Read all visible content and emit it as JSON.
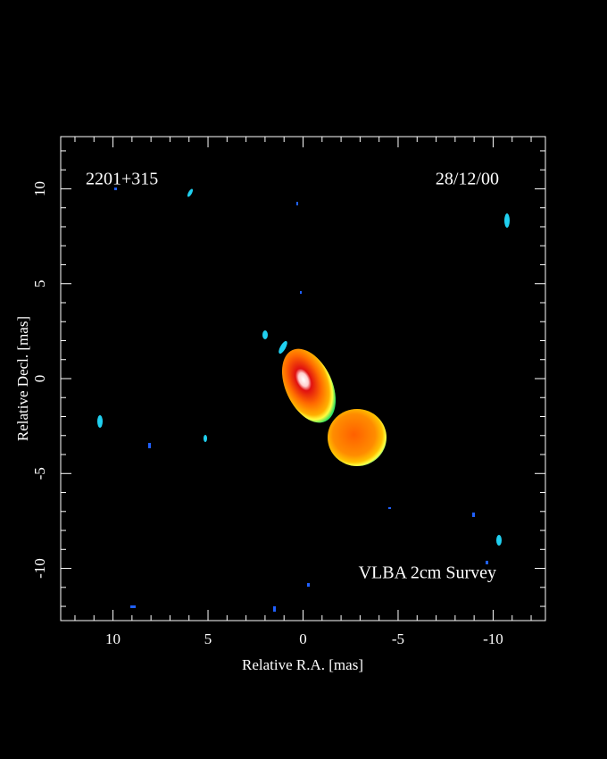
{
  "chart_data": {
    "type": "image",
    "title": "2201+315",
    "date": "28/12/00",
    "annotation": "VLBA 2cm Survey",
    "x_label": "Relative R.A. [mas]",
    "y_label": "Relative Decl. [mas]",
    "xlim": [
      12.75,
      -12.75
    ],
    "ylim": [
      -12.75,
      12.75
    ],
    "xticks": [
      10,
      5,
      0,
      -5,
      -10
    ],
    "yticks": [
      -10,
      -5,
      0,
      5,
      10
    ],
    "xminorticks": [
      12,
      11,
      9,
      8,
      7,
      6,
      4,
      3,
      2,
      1,
      -1,
      -2,
      -3,
      -4,
      -6,
      -7,
      -8,
      -9,
      -11,
      -12
    ],
    "yminorticks": [
      -12,
      -11,
      -9,
      -8,
      -7,
      -6,
      -4,
      -3,
      -2,
      -1,
      1,
      2,
      3,
      4,
      6,
      7,
      8,
      9,
      11,
      12
    ]
  }
}
